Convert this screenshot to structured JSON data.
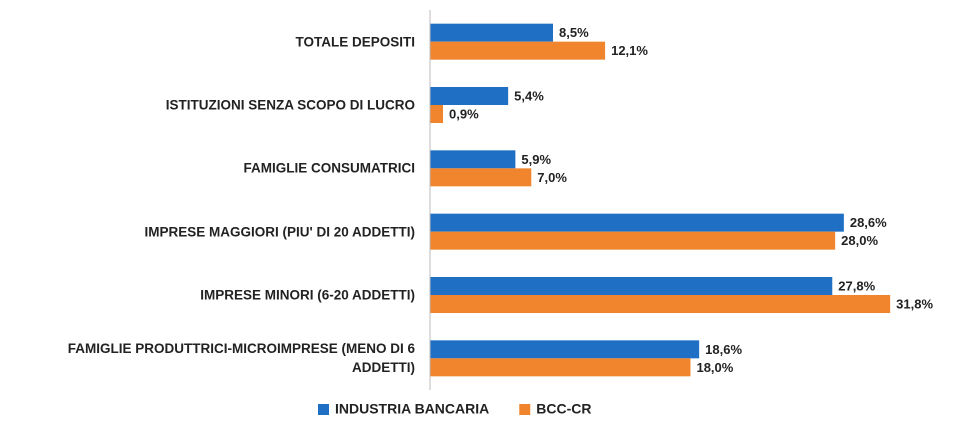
{
  "chart_data": {
    "type": "bar",
    "orientation": "horizontal",
    "categories": [
      "TOTALE DEPOSITI",
      "ISTITUZIONI SENZA SCOPO DI LUCRO",
      "FAMIGLIE CONSUMATRICI",
      "IMPRESE MAGGIORI (PIU' DI 20 ADDETTI)",
      "IMPRESE MINORI (6-20 ADDETTI)",
      "FAMIGLIE PRODUTTRICI-MICROIMPRESE (MENO DI 6 ADDETTI)"
    ],
    "series": [
      {
        "name": "INDUSTRIA BANCARIA",
        "color": "#1f6fc5",
        "values": [
          8.5,
          5.4,
          5.9,
          28.6,
          27.8,
          18.6
        ],
        "value_labels": [
          "8,5%",
          "5,4%",
          "5,9%",
          "28,6%",
          "27,8%",
          "18,6%"
        ]
      },
      {
        "name": "BCC-CR",
        "color": "#f0852d",
        "values": [
          12.1,
          0.9,
          7.0,
          28.0,
          31.8,
          18.0
        ],
        "value_labels": [
          "12,1%",
          "0,9%",
          "7,0%",
          "28,0%",
          "31,8%",
          "18,0%"
        ]
      }
    ],
    "xlim": [
      0,
      34
    ],
    "legend": "bottom"
  }
}
